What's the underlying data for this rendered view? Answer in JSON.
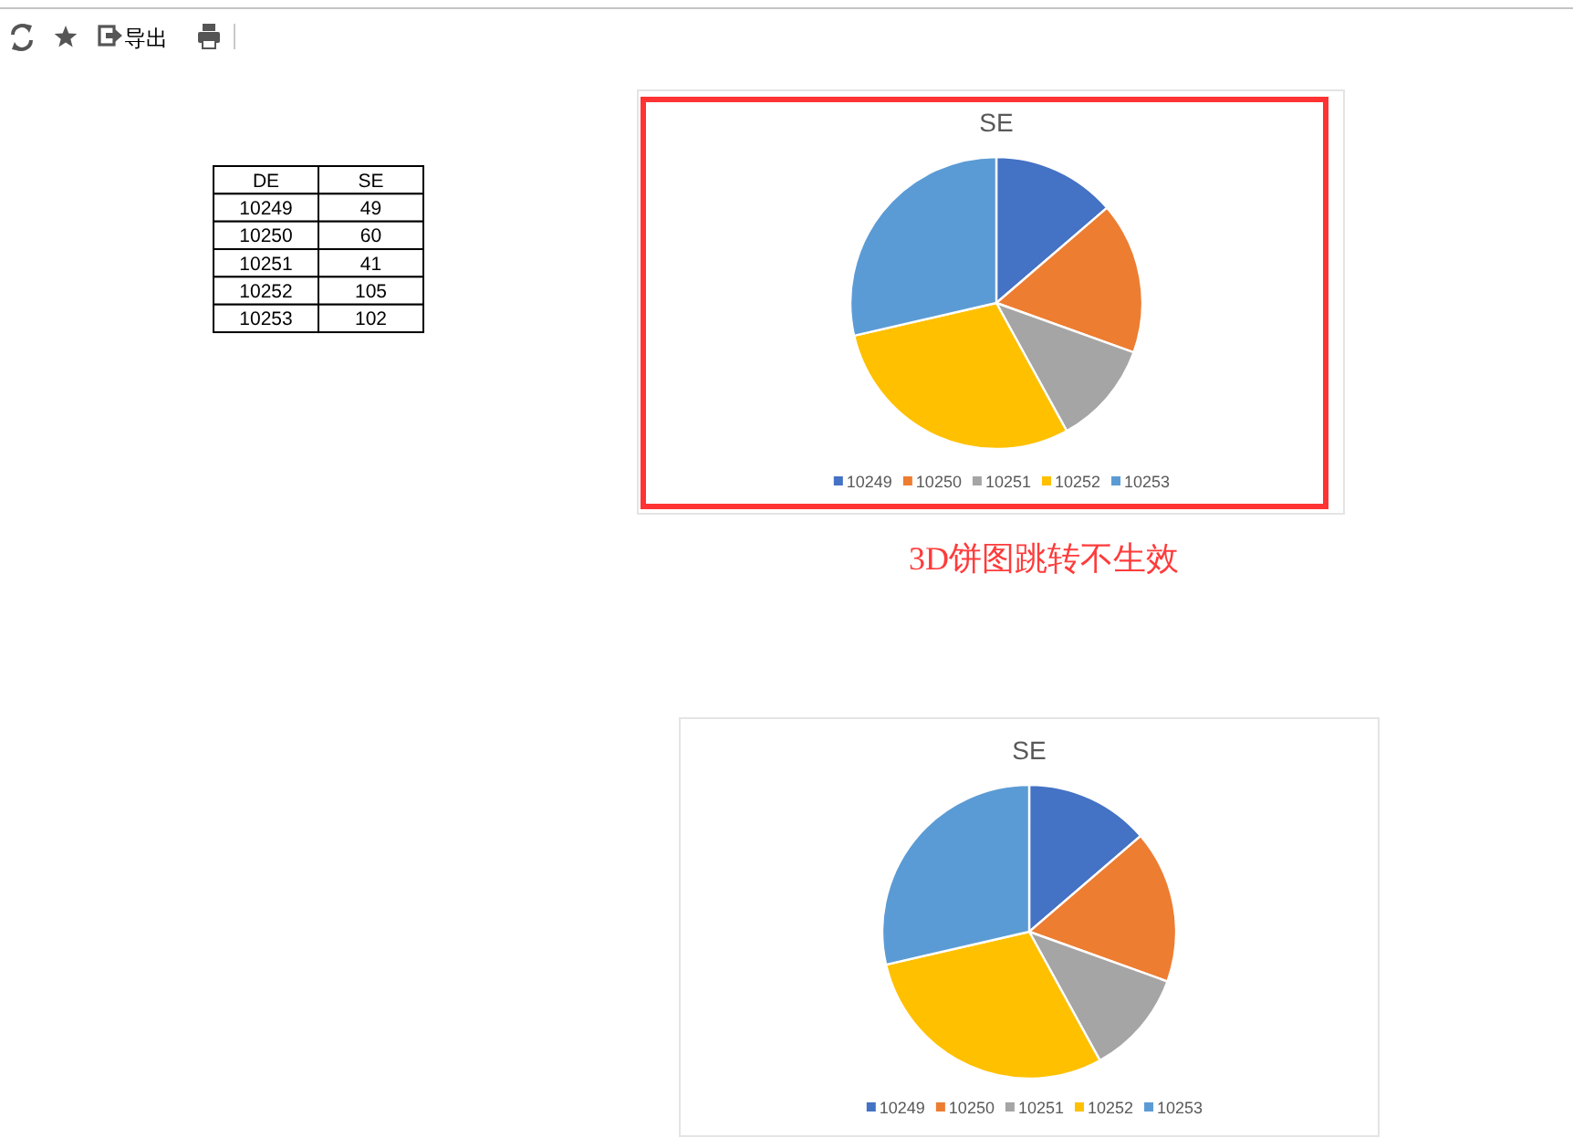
{
  "chart_data": [
    {
      "type": "other",
      "annotations": [
        "导出"
      ]
    },
    {
      "type": "heatmap",
      "ylabel": "DE",
      "categories": [
        "SE"
      ],
      "y_categories": [
        "10249",
        "10250",
        "10251",
        "10252",
        "10253"
      ],
      "cells": [
        [
          49
        ],
        [
          60
        ],
        [
          41
        ],
        [
          105
        ],
        [
          102
        ]
      ],
      "data_labels": true
    },
    {
      "type": "pie",
      "title": "SE",
      "categories": [
        "10249",
        "10250",
        "10251",
        "10252",
        "10253"
      ],
      "values": [
        13.7,
        16.8,
        11.5,
        29.4,
        28.6
      ],
      "colors": [
        "#4472c4",
        "#ed7d31",
        "#a5a5a5",
        "#ffc000",
        "#5b9bd5"
      ],
      "legend": "bottom",
      "annotations": [
        "3D饼图跳转不生效"
      ]
    },
    {
      "type": "pie",
      "title": "SE",
      "categories": [
        "10249",
        "10250",
        "10251",
        "10252",
        "10253"
      ],
      "values": [
        13.7,
        16.8,
        11.5,
        29.4,
        28.6
      ],
      "colors": [
        "#4472c4",
        "#ed7d31",
        "#a5a5a5",
        "#ffc000",
        "#5b9bd5"
      ],
      "legend": "bottom"
    }
  ]
}
